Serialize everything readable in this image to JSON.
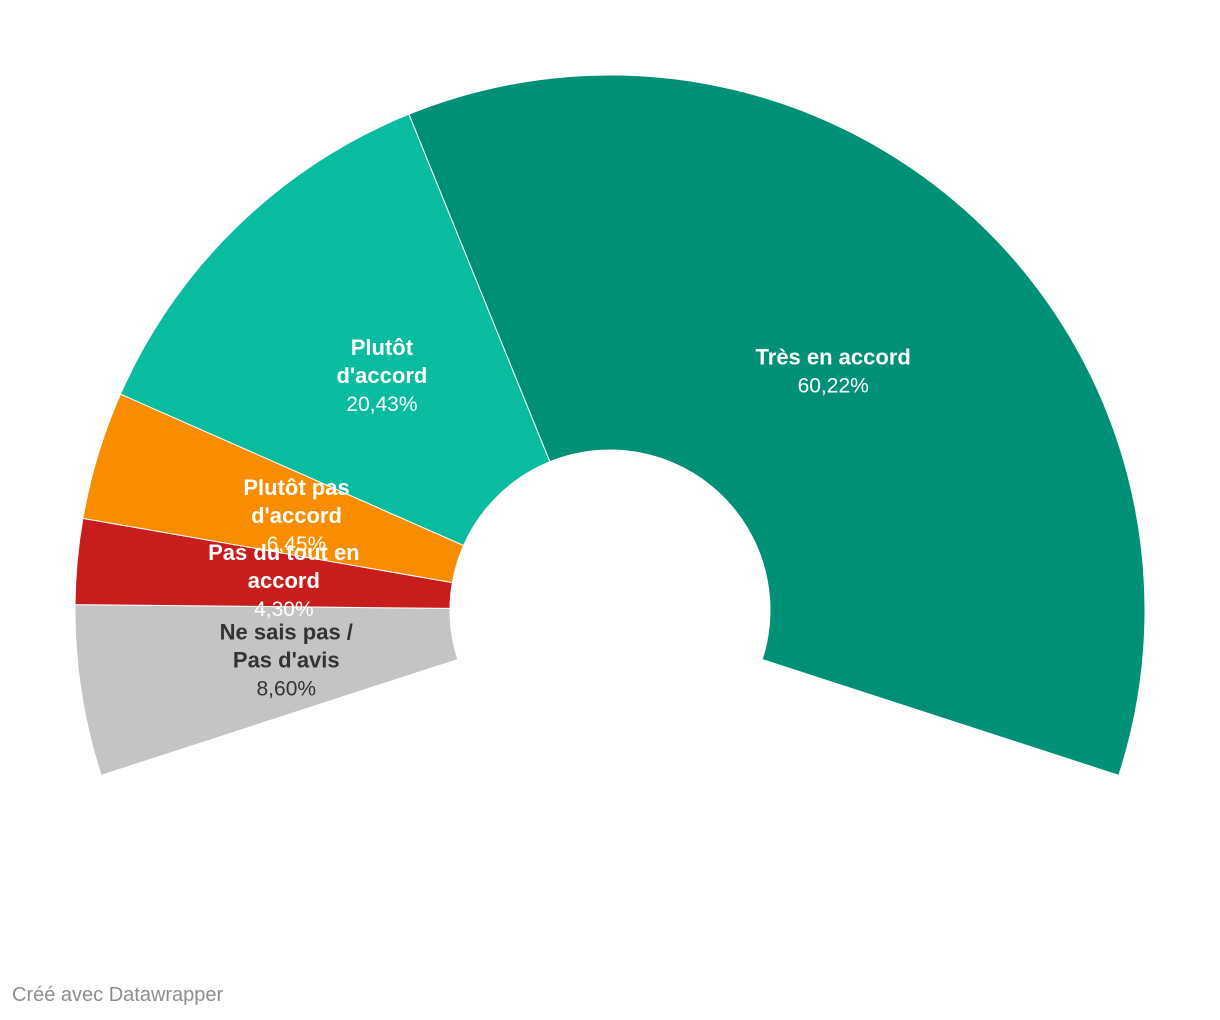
{
  "chart_data": {
    "type": "pie",
    "variant": "semicircle-donut",
    "slices": [
      {
        "label": [
          "Ne sais pas /",
          "Pas d'avis"
        ],
        "display_value": "8,60%",
        "value": 8.6,
        "color": "#c4c4c4",
        "text_color": "#333333"
      },
      {
        "label": [
          "Pas du tout en",
          "accord"
        ],
        "display_value": "4,30%",
        "value": 4.3,
        "color": "#c71e1d",
        "text_color": "#ffffff"
      },
      {
        "label": [
          "Plutôt pas",
          "d'accord"
        ],
        "display_value": "6,45%",
        "value": 6.45,
        "color": "#fa8c00",
        "text_color": "#ffffff"
      },
      {
        "label": [
          "Plutôt",
          "d'accord"
        ],
        "display_value": "20,43%",
        "value": 20.43,
        "color": "#09bb9f",
        "text_color": "#ffffff"
      },
      {
        "label": [
          "Très en accord"
        ],
        "display_value": "60,22%",
        "value": 60.22,
        "color": "#009076",
        "text_color": "#ffffff"
      }
    ]
  },
  "footer": {
    "credit": "Créé avec Datawrapper"
  }
}
